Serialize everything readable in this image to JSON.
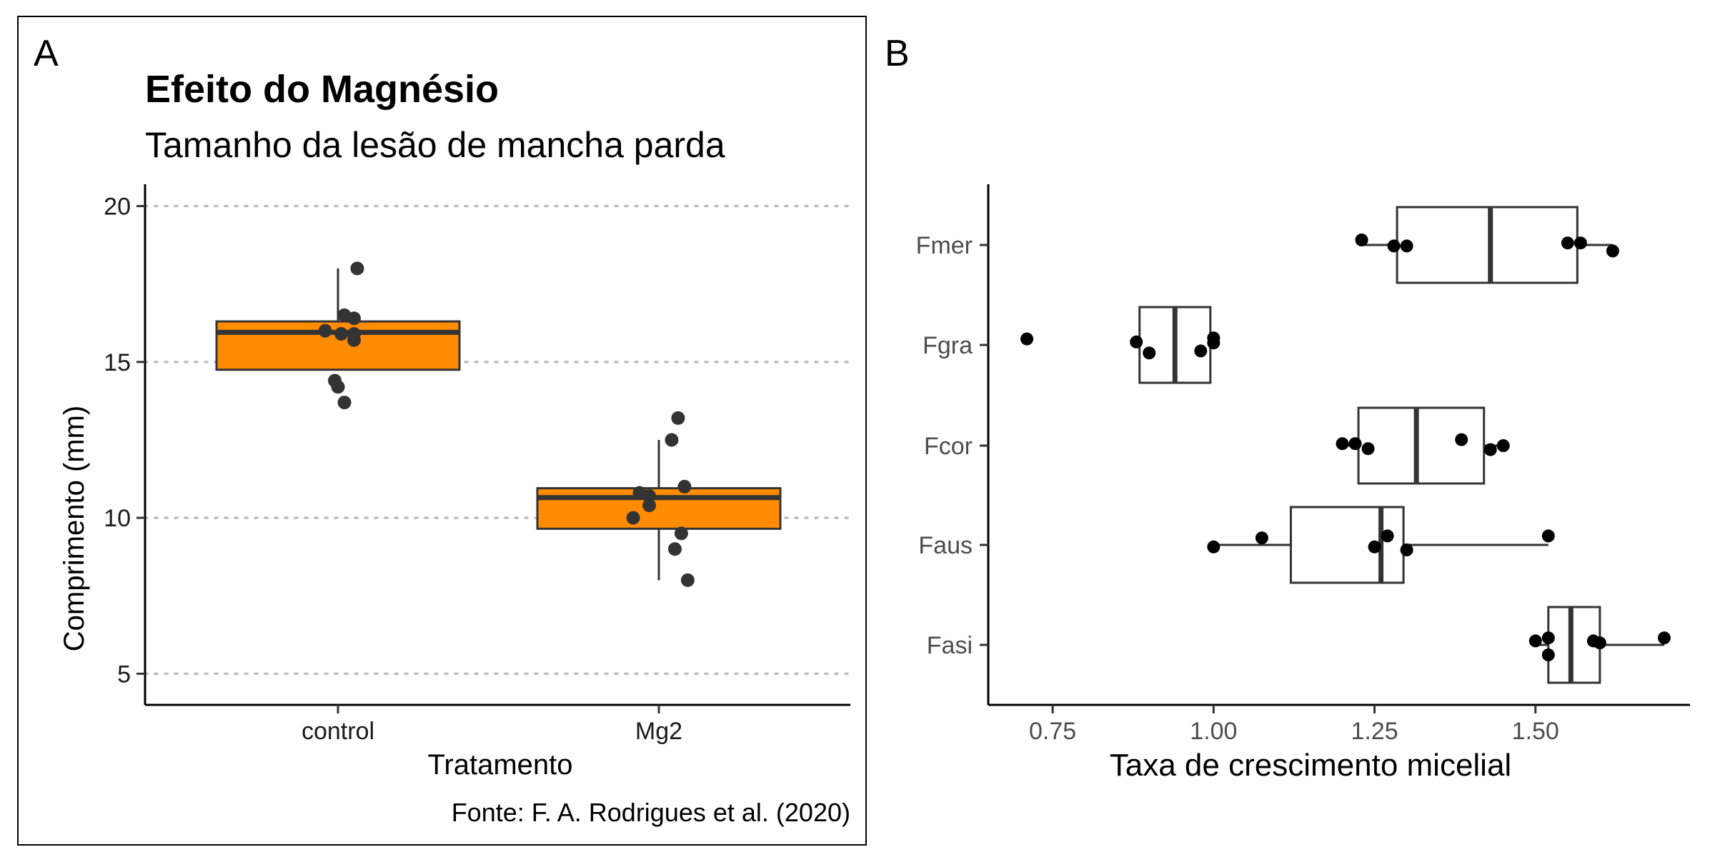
{
  "panels": {
    "a": {
      "tag": "A"
    },
    "b": {
      "tag": "B"
    }
  },
  "chart_data": [
    {
      "type": "boxplot",
      "panel": "A",
      "title": "Efeito do Magnésio",
      "subtitle": "Tamanho da lesão de mancha parda",
      "xlabel": "Tratamento",
      "ylabel": "Comprimento (mm)",
      "caption": "Fonte: F. A. Rodrigues et al. (2020)",
      "ylim": [
        4,
        20.7
      ],
      "yticks": [
        5,
        10,
        15,
        20
      ],
      "grid": "horizontal dotted",
      "fill_color": "#ff8c00",
      "point_color": "#333333",
      "categories": [
        "control",
        "Mg2"
      ],
      "boxes": [
        {
          "category": "control",
          "q1": 14.75,
          "median": 15.95,
          "q3": 16.3,
          "whisker_low": 14.75,
          "whisker_high": 18.0
        },
        {
          "category": "Mg2",
          "q1": 9.65,
          "median": 10.65,
          "q3": 10.95,
          "whisker_low": 8.0,
          "whisker_high": 12.5
        }
      ],
      "points": [
        {
          "category": "control",
          "y": 18.0,
          "jitter": 0.06
        },
        {
          "category": "control",
          "y": 16.5,
          "jitter": 0.02
        },
        {
          "category": "control",
          "y": 16.4,
          "jitter": 0.05
        },
        {
          "category": "control",
          "y": 16.0,
          "jitter": -0.04
        },
        {
          "category": "control",
          "y": 15.9,
          "jitter": 0.01
        },
        {
          "category": "control",
          "y": 15.9,
          "jitter": 0.05
        },
        {
          "category": "control",
          "y": 15.7,
          "jitter": 0.05
        },
        {
          "category": "control",
          "y": 14.4,
          "jitter": -0.01
        },
        {
          "category": "control",
          "y": 14.2,
          "jitter": 0.0
        },
        {
          "category": "control",
          "y": 13.7,
          "jitter": 0.02
        },
        {
          "category": "Mg2",
          "y": 13.2,
          "jitter": 0.06
        },
        {
          "category": "Mg2",
          "y": 12.5,
          "jitter": 0.04
        },
        {
          "category": "Mg2",
          "y": 11.0,
          "jitter": 0.08
        },
        {
          "category": "Mg2",
          "y": 10.8,
          "jitter": -0.06
        },
        {
          "category": "Mg2",
          "y": 10.7,
          "jitter": -0.03
        },
        {
          "category": "Mg2",
          "y": 10.4,
          "jitter": -0.03
        },
        {
          "category": "Mg2",
          "y": 10.0,
          "jitter": -0.08
        },
        {
          "category": "Mg2",
          "y": 9.5,
          "jitter": 0.07
        },
        {
          "category": "Mg2",
          "y": 9.0,
          "jitter": 0.05
        },
        {
          "category": "Mg2",
          "y": 8.0,
          "jitter": 0.09
        }
      ]
    },
    {
      "type": "boxplot",
      "panel": "B",
      "orientation": "horizontal",
      "xlabel": "Taxa de crescimento micelial",
      "ylabel": "",
      "xlim": [
        0.65,
        1.74
      ],
      "xticks": [
        0.75,
        1.0,
        1.25,
        1.5
      ],
      "xtick_labels": [
        "0.75",
        "1.00",
        "1.25",
        "1.50"
      ],
      "categories": [
        "Fasi",
        "Faus",
        "Fcor",
        "Fgra",
        "Fmer"
      ],
      "boxes": [
        {
          "category": "Fmer",
          "q1": 1.285,
          "median": 1.43,
          "q3": 1.565,
          "whisker_low": 1.23,
          "whisker_high": 1.62
        },
        {
          "category": "Fgra",
          "q1": 0.885,
          "median": 0.94,
          "q3": 0.995,
          "whisker_low": 0.885,
          "whisker_high": 0.995
        },
        {
          "category": "Fcor",
          "q1": 1.225,
          "median": 1.315,
          "q3": 1.42,
          "whisker_low": 1.2,
          "whisker_high": 1.45
        },
        {
          "category": "Faus",
          "q1": 1.12,
          "median": 1.26,
          "q3": 1.295,
          "whisker_low": 1.0,
          "whisker_high": 1.52
        },
        {
          "category": "Fasi",
          "q1": 1.52,
          "median": 1.555,
          "q3": 1.6,
          "whisker_low": 1.5,
          "whisker_high": 1.7
        }
      ],
      "points": [
        {
          "category": "Fmer",
          "x": 1.23,
          "jitter": -0.05
        },
        {
          "category": "Fmer",
          "x": 1.28,
          "jitter": 0.01
        },
        {
          "category": "Fmer",
          "x": 1.3,
          "jitter": 0.01
        },
        {
          "category": "Fmer",
          "x": 1.55,
          "jitter": -0.02
        },
        {
          "category": "Fmer",
          "x": 1.57,
          "jitter": -0.02
        },
        {
          "category": "Fmer",
          "x": 1.62,
          "jitter": 0.06
        },
        {
          "category": "Fgra",
          "x": 0.71,
          "jitter": -0.06
        },
        {
          "category": "Fgra",
          "x": 0.88,
          "jitter": -0.03
        },
        {
          "category": "Fgra",
          "x": 0.9,
          "jitter": 0.08
        },
        {
          "category": "Fgra",
          "x": 0.98,
          "jitter": 0.06
        },
        {
          "category": "Fgra",
          "x": 1.0,
          "jitter": -0.02
        },
        {
          "category": "Fgra",
          "x": 1.0,
          "jitter": -0.07
        },
        {
          "category": "Fcor",
          "x": 1.2,
          "jitter": -0.02
        },
        {
          "category": "Fcor",
          "x": 1.22,
          "jitter": -0.02
        },
        {
          "category": "Fcor",
          "x": 1.24,
          "jitter": 0.03
        },
        {
          "category": "Fcor",
          "x": 1.385,
          "jitter": -0.06
        },
        {
          "category": "Fcor",
          "x": 1.43,
          "jitter": 0.04
        },
        {
          "category": "Fcor",
          "x": 1.45,
          "jitter": 0.0
        },
        {
          "category": "Faus",
          "x": 1.0,
          "jitter": 0.02
        },
        {
          "category": "Faus",
          "x": 1.075,
          "jitter": -0.07
        },
        {
          "category": "Faus",
          "x": 1.25,
          "jitter": 0.02
        },
        {
          "category": "Faus",
          "x": 1.27,
          "jitter": -0.09
        },
        {
          "category": "Faus",
          "x": 1.3,
          "jitter": 0.05
        },
        {
          "category": "Faus",
          "x": 1.52,
          "jitter": -0.09
        },
        {
          "category": "Fasi",
          "x": 1.5,
          "jitter": -0.04
        },
        {
          "category": "Fasi",
          "x": 1.52,
          "jitter": 0.1
        },
        {
          "category": "Fasi",
          "x": 1.52,
          "jitter": -0.07
        },
        {
          "category": "Fasi",
          "x": 1.59,
          "jitter": -0.04
        },
        {
          "category": "Fasi",
          "x": 1.6,
          "jitter": -0.02
        },
        {
          "category": "Fasi",
          "x": 1.7,
          "jitter": -0.07
        }
      ]
    }
  ]
}
